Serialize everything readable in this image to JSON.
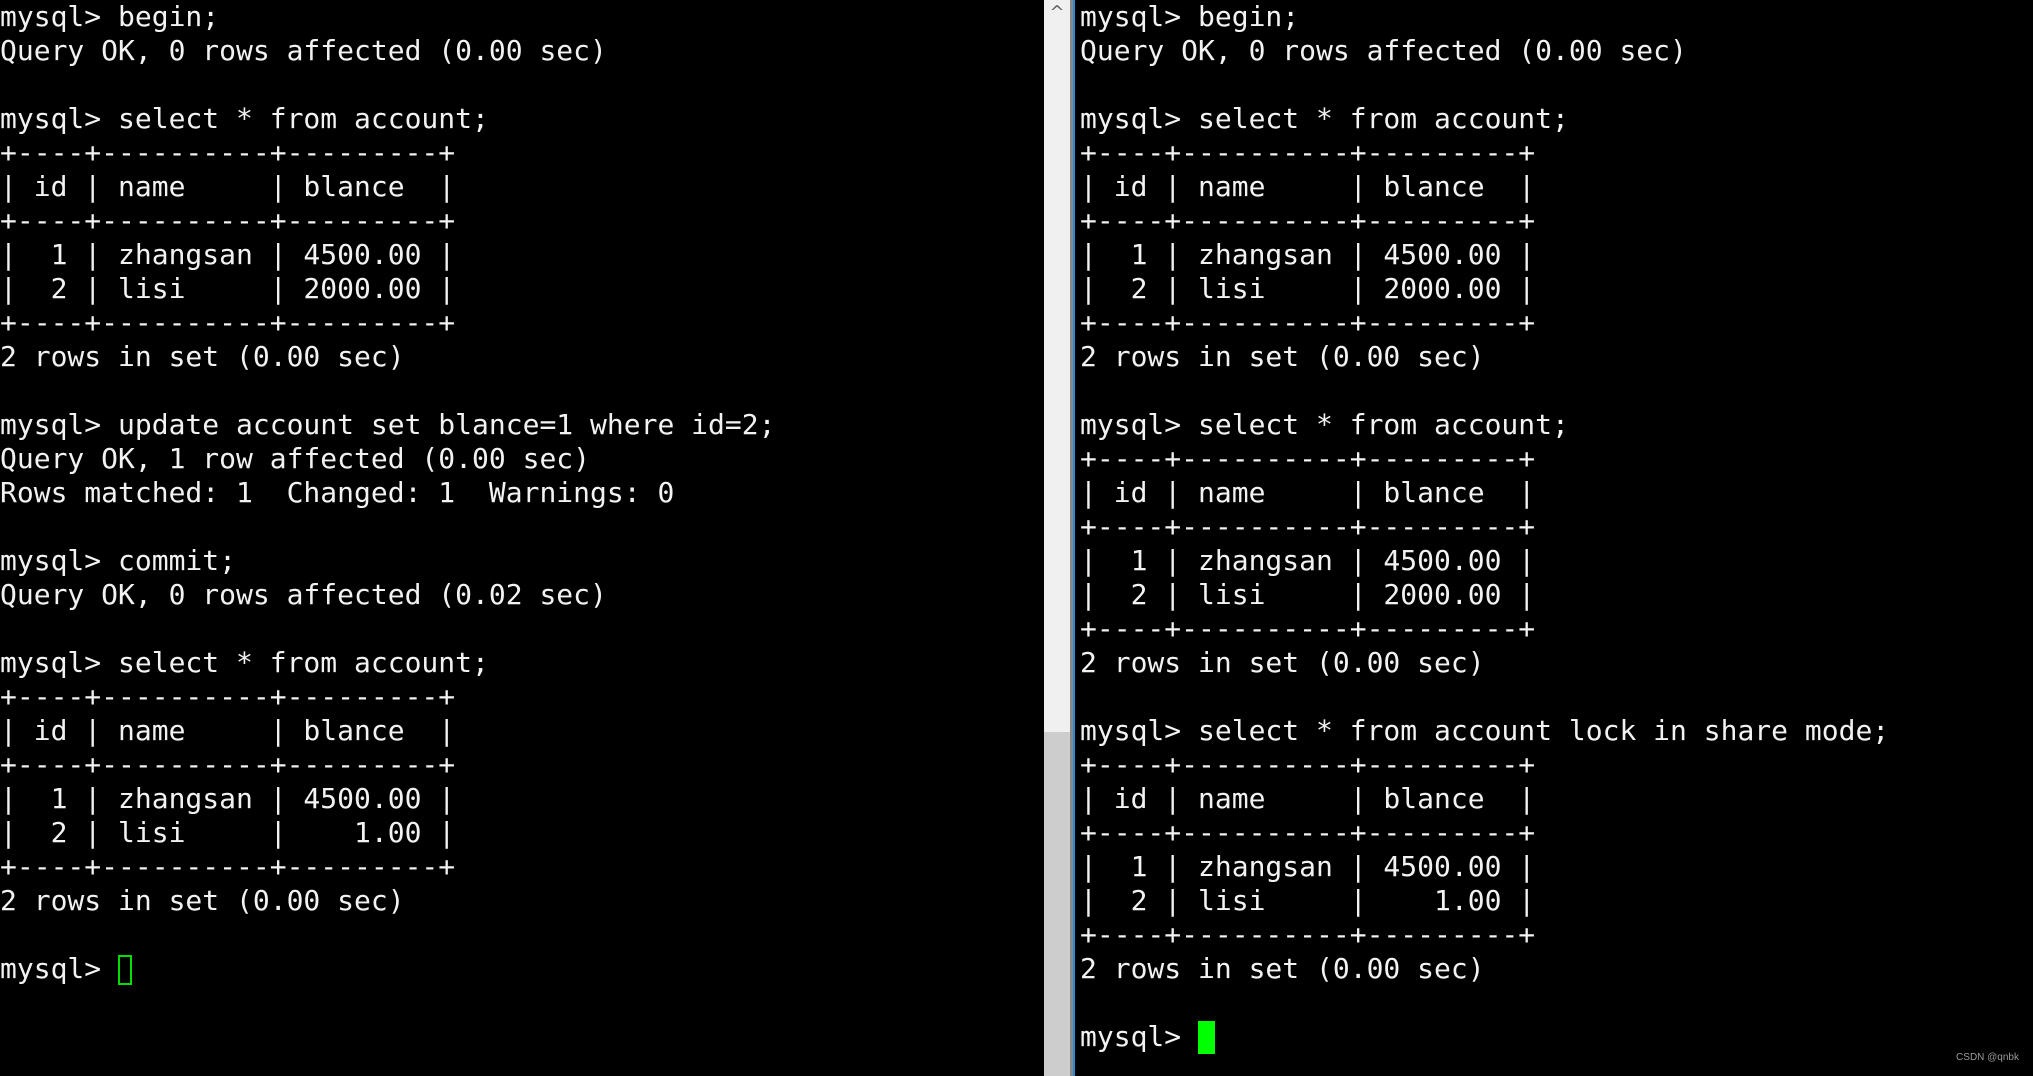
{
  "left_terminal": {
    "lines": [
      "mysql> begin;",
      "Query OK, 0 rows affected (0.00 sec)",
      "",
      "mysql> select * from account;",
      "+----+----------+---------+",
      "| id | name     | blance  |",
      "+----+----------+---------+",
      "|  1 | zhangsan | 4500.00 |",
      "|  2 | lisi     | 2000.00 |",
      "+----+----------+---------+",
      "2 rows in set (0.00 sec)",
      "",
      "mysql> update account set blance=1 where id=2;",
      "Query OK, 1 row affected (0.00 sec)",
      "Rows matched: 1  Changed: 1  Warnings: 0",
      "",
      "mysql> commit;",
      "Query OK, 0 rows affected (0.02 sec)",
      "",
      "mysql> select * from account;",
      "+----+----------+---------+",
      "| id | name     | blance  |",
      "+----+----------+---------+",
      "|  1 | zhangsan | 4500.00 |",
      "|  2 | lisi     |    1.00 |",
      "+----+----------+---------+",
      "2 rows in set (0.00 sec)",
      ""
    ],
    "prompt": "mysql> ",
    "cursor_color": "#00e000"
  },
  "right_terminal": {
    "lines": [
      "mysql> begin;",
      "Query OK, 0 rows affected (0.00 sec)",
      "",
      "mysql> select * from account;",
      "+----+----------+---------+",
      "| id | name     | blance  |",
      "+----+----------+---------+",
      "|  1 | zhangsan | 4500.00 |",
      "|  2 | lisi     | 2000.00 |",
      "+----+----------+---------+",
      "2 rows in set (0.00 sec)",
      "",
      "mysql> select * from account;",
      "+----+----------+---------+",
      "| id | name     | blance  |",
      "+----+----------+---------+",
      "|  1 | zhangsan | 4500.00 |",
      "|  2 | lisi     | 2000.00 |",
      "+----+----------+---------+",
      "2 rows in set (0.00 sec)",
      "",
      "mysql> select * from account lock in share mode;",
      "+----+----------+---------+",
      "| id | name     | blance  |",
      "+----+----------+---------+",
      "|  1 | zhangsan | 4500.00 |",
      "|  2 | lisi     |    1.00 |",
      "+----+----------+---------+",
      "2 rows in set (0.00 sec)",
      ""
    ],
    "prompt": "mysql> ",
    "cursor_color": "#00ff00"
  },
  "scrollbar": {
    "up_icon": "chevron-up-icon",
    "up_glyph": "^"
  },
  "watermark": "CSDN @qnbk"
}
